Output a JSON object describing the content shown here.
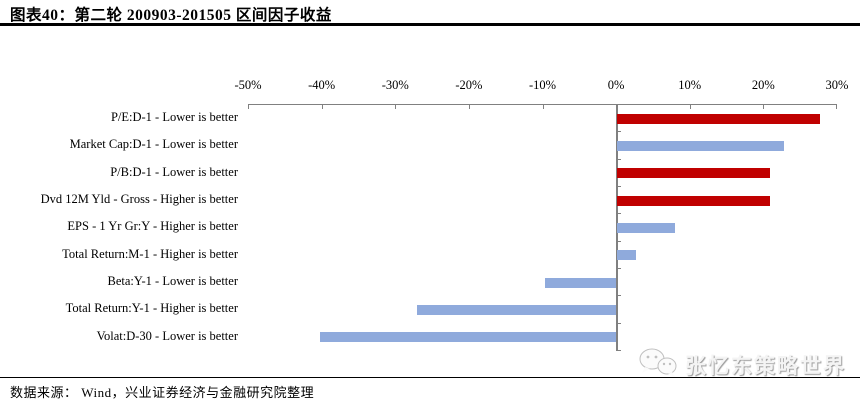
{
  "title": "图表40：第二轮 200903-201505 区间因子收益",
  "footer": {
    "source": "数据来源：  Wind，兴业证券经济与金融研究院整理"
  },
  "watermark": {
    "label": "张忆东策略世界",
    "icon": "wechat-icon"
  },
  "colors": {
    "highlight_bar": "#c00000",
    "base_bar": "#8faadc",
    "axis": "#808080",
    "watermark_text": "#f4f4f4"
  },
  "chart_data": {
    "type": "bar",
    "orientation": "horizontal",
    "title": "第二轮 200903-201505 区间因子收益",
    "axis_position": "top",
    "xlim": [
      -50,
      30
    ],
    "x_ticks": [
      "-50%",
      "-40%",
      "-30%",
      "-20%",
      "-10%",
      "0%",
      "10%",
      "20%",
      "30%"
    ],
    "grid": false,
    "legend": false,
    "value_unit": "%",
    "categories": [
      "P/E:D-1 - Lower is better",
      "Market Cap:D-1 - Lower is better",
      "P/B:D-1 - Lower is better",
      "Dvd 12M Yld - Gross - Higher is better",
      "EPS - 1 Yr Gr:Y - Higher is better",
      "Total Return:M-1 - Higher is better",
      "Beta:Y-1 - Lower is better",
      "Total Return:Y-1 - Higher is better",
      "Volat:D-30 - Lower is better"
    ],
    "values": [
      27.5,
      22.7,
      20.8,
      20.8,
      7.8,
      2.5,
      -9.7,
      -27.0,
      -40.2
    ],
    "bar_colors": [
      "#c00000",
      "#8faadc",
      "#c00000",
      "#c00000",
      "#8faadc",
      "#8faadc",
      "#8faadc",
      "#8faadc",
      "#8faadc"
    ]
  }
}
